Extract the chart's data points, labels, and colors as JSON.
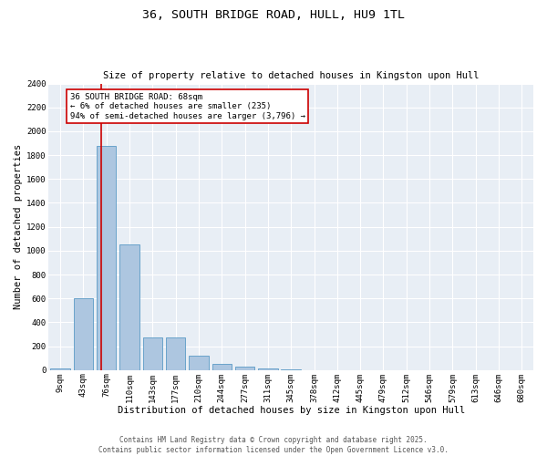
{
  "title": "36, SOUTH BRIDGE ROAD, HULL, HU9 1TL",
  "subtitle": "Size of property relative to detached houses in Kingston upon Hull",
  "xlabel": "Distribution of detached houses by size in Kingston upon Hull",
  "ylabel": "Number of detached properties",
  "categories": [
    "9sqm",
    "43sqm",
    "76sqm",
    "110sqm",
    "143sqm",
    "177sqm",
    "210sqm",
    "244sqm",
    "277sqm",
    "311sqm",
    "345sqm",
    "378sqm",
    "412sqm",
    "445sqm",
    "479sqm",
    "512sqm",
    "546sqm",
    "579sqm",
    "613sqm",
    "646sqm",
    "680sqm"
  ],
  "values": [
    10,
    600,
    1880,
    1050,
    270,
    270,
    120,
    50,
    30,
    15,
    5,
    2,
    2,
    0,
    0,
    0,
    0,
    0,
    0,
    0,
    0
  ],
  "bar_color": "#adc6e0",
  "bar_edge_color": "#5a9ac5",
  "vline_color": "#cc0000",
  "annotation_text": "36 SOUTH BRIDGE ROAD: 68sqm\n← 6% of detached houses are smaller (235)\n94% of semi-detached houses are larger (3,796) →",
  "annotation_box_color": "#ffffff",
  "annotation_box_edge_color": "#cc0000",
  "ylim": [
    0,
    2400
  ],
  "yticks": [
    0,
    200,
    400,
    600,
    800,
    1000,
    1200,
    1400,
    1600,
    1800,
    2000,
    2200,
    2400
  ],
  "background_color": "#e8eef5",
  "grid_color": "#ffffff",
  "footer": "Contains HM Land Registry data © Crown copyright and database right 2025.\nContains public sector information licensed under the Open Government Licence v3.0.",
  "title_fontsize": 9.5,
  "subtitle_fontsize": 7.5,
  "xlabel_fontsize": 7.5,
  "ylabel_fontsize": 7.5,
  "tick_fontsize": 6.5,
  "footer_fontsize": 5.5,
  "annotation_fontsize": 6.5
}
